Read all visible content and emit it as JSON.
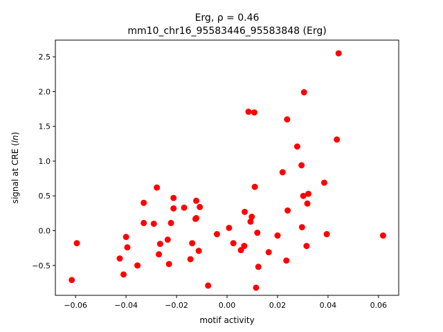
{
  "title_line1": "Erg, ρ = 0.46",
  "title_line2": "mm10_chr16_95583446_95583848 (Erg)",
  "chart_data": {
    "type": "scatter",
    "title": "Erg, ρ = 0.46\nmm10_chr16_95583446_95583848 (Erg)",
    "xlabel": "motif activity",
    "ylabel": "signal at CRE (ln)",
    "xlim": [
      -0.068,
      0.068
    ],
    "ylim": [
      -0.93,
      2.74
    ],
    "xticks": [
      -0.06,
      -0.04,
      -0.02,
      0.0,
      0.02,
      0.04,
      0.06
    ],
    "xtick_labels": [
      "−0.06",
      "−0.04",
      "−0.02",
      "0.00",
      "0.02",
      "0.04",
      "0.06"
    ],
    "yticks": [
      -0.5,
      0.0,
      0.5,
      1.0,
      1.5,
      2.0,
      2.5
    ],
    "ytick_labels": [
      "−0.5",
      "0.0",
      "0.5",
      "1.0",
      "1.5",
      "2.0",
      "2.5"
    ],
    "marker_color": "#ff0000",
    "grid": false,
    "points": [
      {
        "x": -0.0615,
        "y": -0.71
      },
      {
        "x": -0.0595,
        "y": -0.18
      },
      {
        "x": -0.0425,
        "y": -0.4
      },
      {
        "x": -0.041,
        "y": -0.63
      },
      {
        "x": -0.04,
        "y": -0.09
      },
      {
        "x": -0.0395,
        "y": -0.24
      },
      {
        "x": -0.0355,
        "y": -0.5
      },
      {
        "x": -0.033,
        "y": 0.4
      },
      {
        "x": -0.033,
        "y": 0.11
      },
      {
        "x": -0.029,
        "y": 0.1
      },
      {
        "x": -0.0278,
        "y": 0.62
      },
      {
        "x": -0.027,
        "y": -0.34
      },
      {
        "x": -0.0265,
        "y": -0.19
      },
      {
        "x": -0.0235,
        "y": -0.13
      },
      {
        "x": -0.023,
        "y": -0.48
      },
      {
        "x": -0.0222,
        "y": 0.11
      },
      {
        "x": -0.0212,
        "y": 0.47
      },
      {
        "x": -0.0212,
        "y": 0.32
      },
      {
        "x": -0.017,
        "y": 0.33
      },
      {
        "x": -0.0145,
        "y": -0.41
      },
      {
        "x": -0.0138,
        "y": -0.18
      },
      {
        "x": -0.0125,
        "y": 0.17
      },
      {
        "x": -0.0122,
        "y": 0.18
      },
      {
        "x": -0.0122,
        "y": 0.43
      },
      {
        "x": -0.0112,
        "y": -0.29
      },
      {
        "x": -0.0108,
        "y": 0.34
      },
      {
        "x": -0.0075,
        "y": -0.79
      },
      {
        "x": -0.004,
        "y": -0.05
      },
      {
        "x": 0.0008,
        "y": 0.04
      },
      {
        "x": 0.0025,
        "y": -0.18
      },
      {
        "x": 0.0055,
        "y": -0.28
      },
      {
        "x": 0.0068,
        "y": -0.22
      },
      {
        "x": 0.007,
        "y": 0.27
      },
      {
        "x": 0.0085,
        "y": 1.71
      },
      {
        "x": 0.0093,
        "y": 0.13
      },
      {
        "x": 0.0098,
        "y": 0.2
      },
      {
        "x": 0.0108,
        "y": 1.7
      },
      {
        "x": 0.011,
        "y": 0.63
      },
      {
        "x": 0.0115,
        "y": -0.82
      },
      {
        "x": 0.012,
        "y": -0.03
      },
      {
        "x": 0.0124,
        "y": -0.52
      },
      {
        "x": 0.0165,
        "y": -0.31
      },
      {
        "x": 0.02,
        "y": -0.07
      },
      {
        "x": 0.022,
        "y": 0.84
      },
      {
        "x": 0.0235,
        "y": -0.43
      },
      {
        "x": 0.0238,
        "y": 1.6
      },
      {
        "x": 0.024,
        "y": 0.29
      },
      {
        "x": 0.0278,
        "y": 1.21
      },
      {
        "x": 0.0295,
        "y": 0.94
      },
      {
        "x": 0.0297,
        "y": 0.05
      },
      {
        "x": 0.0302,
        "y": 0.5
      },
      {
        "x": 0.0305,
        "y": 1.99
      },
      {
        "x": 0.0315,
        "y": -0.22
      },
      {
        "x": 0.0318,
        "y": 0.39
      },
      {
        "x": 0.0322,
        "y": 0.53
      },
      {
        "x": 0.0385,
        "y": 0.69
      },
      {
        "x": 0.0395,
        "y": -0.05
      },
      {
        "x": 0.0435,
        "y": 1.31
      },
      {
        "x": 0.0442,
        "y": 2.55
      },
      {
        "x": 0.0618,
        "y": -0.07
      }
    ]
  }
}
